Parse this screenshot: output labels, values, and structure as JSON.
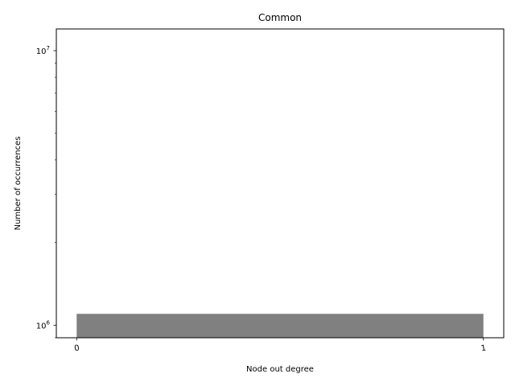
{
  "chart_data": {
    "type": "bar",
    "title": "Common",
    "xlabel": "Node out degree",
    "ylabel": "Number of occurrences",
    "yscale": "log",
    "ylim": [
      900000,
      12000000
    ],
    "xlim": [
      -0.05,
      1.05
    ],
    "x_ticks": [
      {
        "value": 0,
        "label": "0"
      },
      {
        "value": 1,
        "label": "1"
      }
    ],
    "y_ticks": [
      {
        "value": 1000000,
        "base": "10",
        "exp": "6"
      },
      {
        "value": 10000000,
        "base": "10",
        "exp": "7"
      }
    ],
    "bars": [
      {
        "x_start": 0,
        "x_end": 1,
        "value": 1100000
      }
    ],
    "bar_color": "#808080",
    "grid": false,
    "legend": false
  }
}
